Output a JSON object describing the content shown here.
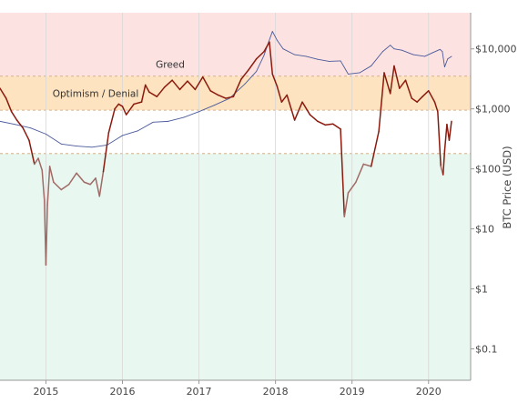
{
  "chart_data": {
    "type": "line",
    "title": "",
    "xlabel": "",
    "ylabel": "BTC Price (USD)",
    "y_scale": "log",
    "ylim": [
      0.03,
      40000
    ],
    "xlim": [
      2014.4,
      2020.55
    ],
    "grid": true,
    "legend": "none",
    "x_ticks": [
      2015,
      2016,
      2017,
      2018,
      2019,
      2020
    ],
    "x_tick_labels": [
      "2015",
      "2016",
      "2017",
      "2018",
      "2019",
      "2020"
    ],
    "y_ticks": [
      0.1,
      1,
      10,
      100,
      1000,
      10000
    ],
    "y_tick_labels": [
      "$0.1",
      "$1",
      "$10",
      "$100",
      "$1,000",
      "$10,000"
    ],
    "zones": [
      {
        "label": "Greed",
        "ymin": 3500,
        "ymax": 40000,
        "color": "#fde2e2"
      },
      {
        "label": "Optimism / Denial",
        "ymin": 950,
        "ymax": 3500,
        "color": "#fde3bf"
      },
      {
        "label": "",
        "ymin": 180,
        "ymax": 950,
        "color": "#ffffff"
      },
      {
        "label": "",
        "ymin": 0.03,
        "ymax": 180,
        "color": "#e8f7ef"
      }
    ],
    "series": [
      {
        "color": "#8b1a0e",
        "low_color": "#a06a66",
        "x": [
          2014.4,
          2014.48,
          2014.55,
          2014.62,
          2014.7,
          2014.78,
          2014.85,
          2014.9,
          2014.95,
          2014.98,
          2015.0,
          2015.02,
          2015.05,
          2015.1,
          2015.2,
          2015.3,
          2015.4,
          2015.5,
          2015.58,
          2015.65,
          2015.7,
          2015.75,
          2015.82,
          2015.9,
          2015.95,
          2016.0,
          2016.05,
          2016.15,
          2016.25,
          2016.3,
          2016.35,
          2016.45,
          2016.55,
          2016.65,
          2016.75,
          2016.85,
          2016.95,
          2017.05,
          2017.15,
          2017.25,
          2017.35,
          2017.45,
          2017.55,
          2017.65,
          2017.75,
          2017.85,
          2017.92,
          2017.96,
          2018.02,
          2018.08,
          2018.15,
          2018.25,
          2018.35,
          2018.45,
          2018.55,
          2018.65,
          2018.75,
          2018.85,
          2018.9,
          2018.95,
          2019.05,
          2019.15,
          2019.25,
          2019.35,
          2019.42,
          2019.5,
          2019.55,
          2019.62,
          2019.7,
          2019.78,
          2019.85,
          2019.92,
          2020.0,
          2020.08,
          2020.12,
          2020.16,
          2020.19,
          2020.21,
          2020.24,
          2020.27,
          2020.3
        ],
        "y": [
          2200,
          1500,
          900,
          650,
          480,
          300,
          120,
          150,
          95,
          30,
          2.5,
          25,
          110,
          60,
          45,
          55,
          85,
          60,
          55,
          70,
          35,
          90,
          400,
          1000,
          1200,
          1100,
          800,
          1200,
          1300,
          2500,
          1900,
          1600,
          2300,
          3000,
          2100,
          2900,
          2100,
          3400,
          2000,
          1700,
          1500,
          1600,
          3100,
          4500,
          6800,
          9000,
          13000,
          3800,
          2400,
          1300,
          1700,
          650,
          1300,
          800,
          620,
          540,
          560,
          460,
          16,
          40,
          60,
          120,
          110,
          420,
          4000,
          1800,
          5200,
          2200,
          3000,
          1500,
          1300,
          1600,
          2000,
          1300,
          900,
          110,
          80,
          200,
          550,
          300,
          620
        ]
      },
      {
        "color": "#4a5a9a",
        "x": [
          2014.4,
          2014.6,
          2014.8,
          2015.0,
          2015.2,
          2015.4,
          2015.6,
          2015.8,
          2016.0,
          2016.2,
          2016.4,
          2016.6,
          2016.8,
          2017.0,
          2017.2,
          2017.4,
          2017.6,
          2017.75,
          2017.85,
          2017.9,
          2017.96,
          2018.02,
          2018.1,
          2018.25,
          2018.4,
          2018.55,
          2018.7,
          2018.85,
          2018.95,
          2019.1,
          2019.25,
          2019.4,
          2019.5,
          2019.55,
          2019.65,
          2019.8,
          2019.95,
          2020.05,
          2020.15,
          2020.18,
          2020.21,
          2020.25,
          2020.3
        ],
        "y": [
          620,
          550,
          480,
          380,
          260,
          240,
          230,
          250,
          360,
          430,
          600,
          620,
          720,
          900,
          1150,
          1500,
          2600,
          4200,
          7800,
          12000,
          19500,
          14000,
          10000,
          8000,
          7500,
          6700,
          6200,
          6300,
          3800,
          4000,
          5200,
          9000,
          11500,
          10000,
          9500,
          8000,
          7500,
          8600,
          9800,
          9000,
          5000,
          6800,
          7500
        ]
      }
    ]
  }
}
